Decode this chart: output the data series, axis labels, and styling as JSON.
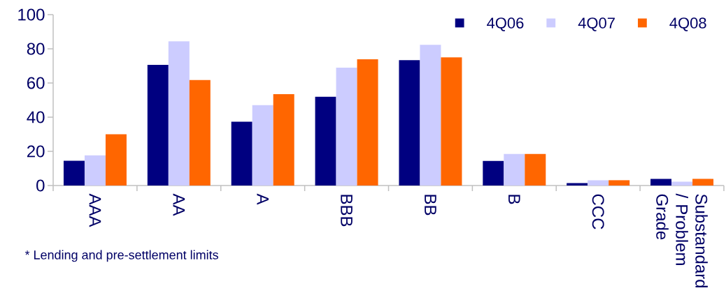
{
  "chart_data": {
    "type": "bar",
    "categories": [
      "AAA",
      "AA",
      "A",
      "BBB",
      "BB",
      "B",
      "CCC",
      "Substandard / Problem Grade"
    ],
    "series": [
      {
        "name": "4Q06",
        "color": "#000080",
        "values": [
          14.5,
          70.6,
          37.3,
          51.9,
          73.4,
          14.4,
          1.4,
          3.9
        ]
      },
      {
        "name": "4Q07",
        "color": "#ccccff",
        "values": [
          17.7,
          84.4,
          47,
          69,
          82.3,
          18.5,
          3.1,
          2.2
        ]
      },
      {
        "name": "4Q08",
        "color": "#ff6600",
        "values": [
          30,
          61.7,
          53.5,
          73.9,
          75,
          18.5,
          3.1,
          3.9
        ]
      }
    ],
    "ylim": [
      0,
      100
    ],
    "yticks": [
      0,
      20,
      40,
      60,
      80,
      100
    ],
    "legend": "top right",
    "grid": false,
    "annotations": [
      "* Lending and pre-settlement limits"
    ]
  }
}
